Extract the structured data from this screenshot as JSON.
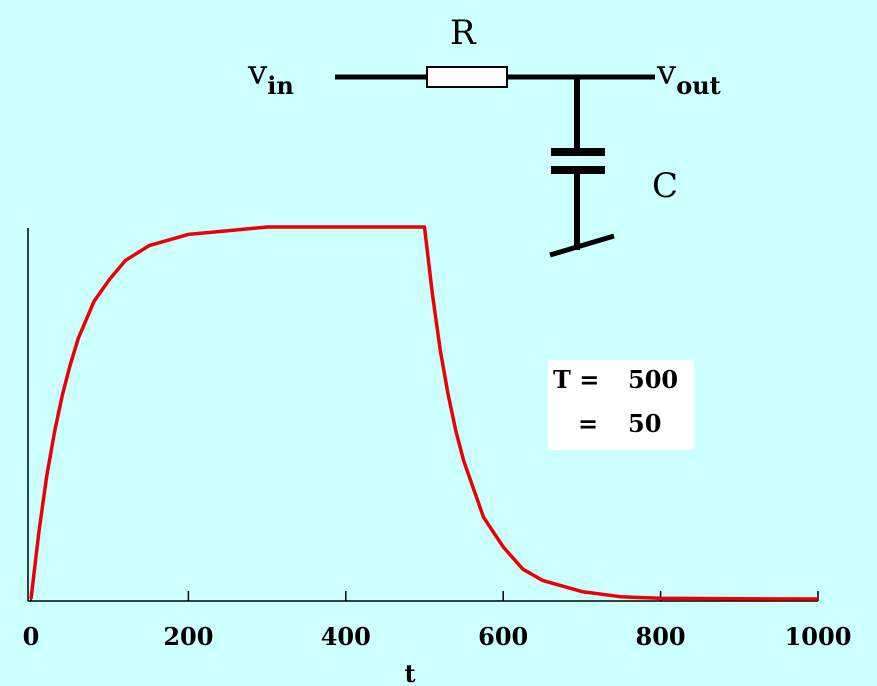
{
  "circuit": {
    "resistor_label": "R",
    "capacitor_label": "C",
    "vin": {
      "base": "v",
      "sub": "in"
    },
    "vout": {
      "base": "v",
      "sub": "out"
    }
  },
  "params": {
    "t_label": "T =",
    "t_value": "500",
    "tau_label": "=",
    "tau_value": "50"
  },
  "colors": {
    "background": "#ccffff",
    "curve": "#ee0000",
    "box": "#ffffff"
  },
  "chart_data": {
    "type": "line",
    "title": "",
    "xlabel": "t",
    "ylabel": "",
    "xlim": [
      0,
      1000
    ],
    "ylim": [
      0,
      1
    ],
    "x_ticks": [
      0,
      200,
      400,
      600,
      800,
      1000
    ],
    "x_tick_labels": [
      "0",
      "200",
      "400",
      "600",
      "800",
      "1000"
    ],
    "grid": false,
    "series": [
      {
        "x": [
          0,
          10,
          20,
          30,
          40,
          50,
          60,
          80,
          100,
          120,
          150,
          200,
          250,
          300,
          400,
          499,
          500,
          510,
          520,
          530,
          540,
          550,
          575,
          600,
          625,
          650,
          700,
          750,
          800,
          900,
          1000
        ],
        "y": [
          0,
          0.18,
          0.33,
          0.45,
          0.55,
          0.63,
          0.7,
          0.8,
          0.86,
          0.91,
          0.95,
          0.98,
          0.99,
          1.0,
          1.0,
          1.0,
          1.0,
          0.82,
          0.67,
          0.55,
          0.45,
          0.37,
          0.22,
          0.14,
          0.08,
          0.05,
          0.02,
          0.006,
          0.002,
          0.0005,
          0
        ]
      }
    ]
  }
}
